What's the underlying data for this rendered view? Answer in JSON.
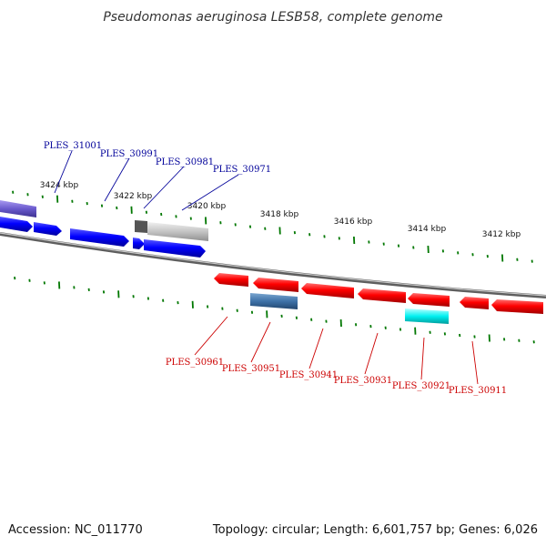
{
  "title": "Pseudomonas aeruginosa LESB58, complete genome",
  "footer": {
    "accession": "Accession: NC_011770",
    "topology": "Topology: circular; Length: 6,601,757 bp; Genes: 6,026"
  },
  "colors": {
    "plus_strand_gene": "#0000ff",
    "minus_strand_gene": "#ff0000",
    "plus_label": "#000099",
    "minus_label": "#cc0000",
    "tick": "#007700",
    "backbone": "#808080"
  },
  "kbp_labels": [
    "3424 kbp",
    "3422 kbp",
    "3420 kbp",
    "3418 kbp",
    "3416 kbp",
    "3414 kbp",
    "3412 kbp"
  ],
  "top_labels": [
    "PLES_31001",
    "PLES_30991",
    "PLES_30981",
    "PLES_30971"
  ],
  "bottom_labels": [
    "PLES_30961",
    "PLES_30951",
    "PLES_30941",
    "PLES_30931",
    "PLES_30921",
    "PLES_30911"
  ]
}
